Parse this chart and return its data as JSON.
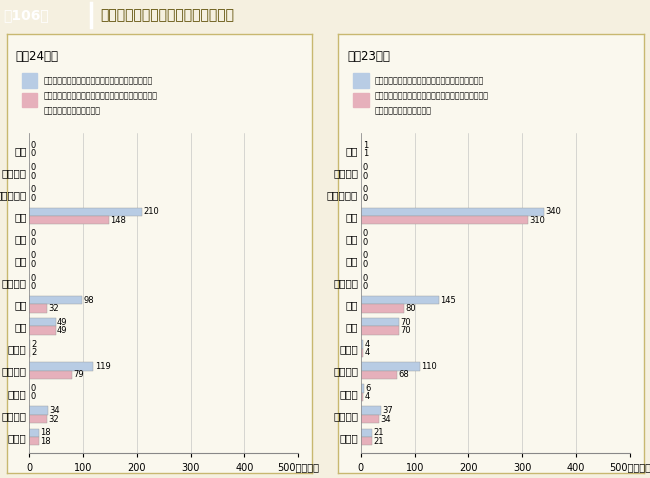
{
  "title_num": "第106図",
  "title_text": "資金不足額の状況（事業別合計額）",
  "subtitle_left": "平成24年度",
  "subtitle_right": "平成23年度",
  "categories": [
    "水道",
    "簡易水道",
    "工業用水道",
    "交通",
    "電気",
    "ガス",
    "港湾整備",
    "病院",
    "市場",
    "と畜場",
    "宅地造成",
    "下水道",
    "観光施設",
    "その他"
  ],
  "left_bar1": [
    0,
    0,
    0,
    210,
    0,
    0,
    0,
    98,
    49,
    2,
    119,
    0,
    34,
    18
  ],
  "left_bar2": [
    0,
    0,
    0,
    148,
    0,
    0,
    0,
    32,
    49,
    2,
    79,
    0,
    32,
    18
  ],
  "right_bar1": [
    1,
    0,
    0,
    340,
    0,
    0,
    0,
    145,
    70,
    4,
    110,
    6,
    37,
    21
  ],
  "right_bar2": [
    1,
    0,
    0,
    310,
    0,
    0,
    0,
    80,
    70,
    4,
    68,
    4,
    34,
    21
  ],
  "color_bar1": "#b8cce4",
  "color_bar2": "#e6b0bb",
  "legend_label1": "資金不足額がある公営企業会計の資金不足額合計額",
  "legend_label2_1": "うち資金不足比率が経営健全化基準以上である公営企",
  "legend_label2_2": "業会計の資金不足額合計額",
  "xlim": [
    0,
    500
  ],
  "xticks": [
    0,
    100,
    200,
    300,
    400,
    500
  ],
  "bg_color": "#f5f0e0",
  "panel_bg": "#faf8ee",
  "panel_border": "#c8b870",
  "title_bg": "#c8a800",
  "title_text_color": "#5a4a00",
  "bar_height": 0.38
}
